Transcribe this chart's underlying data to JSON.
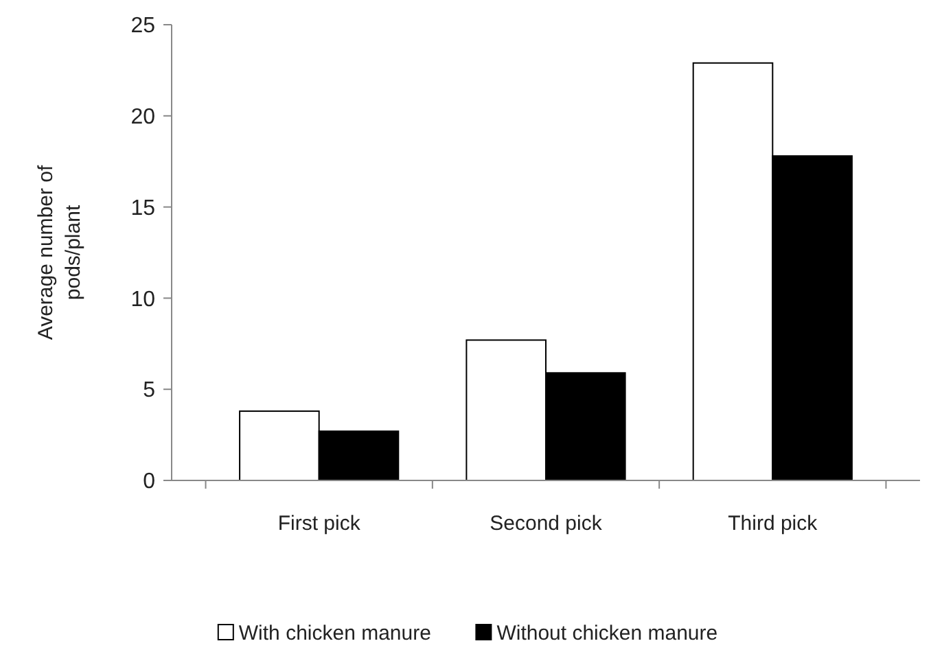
{
  "chart_data": {
    "type": "bar",
    "ylabel": "Average number of pods/plant",
    "categories": [
      "First pick",
      "Second pick",
      "Third pick"
    ],
    "series": [
      {
        "name": "With chicken manure",
        "color": "#ffffff",
        "values": [
          3.8,
          7.7,
          22.9
        ]
      },
      {
        "name": "Without chicken manure",
        "color": "#000000",
        "values": [
          2.7,
          5.9,
          17.8
        ]
      }
    ],
    "ylim": [
      0,
      25
    ],
    "yticks": [
      0,
      5,
      10,
      15,
      20,
      25
    ],
    "grid": false,
    "legend": "bottom"
  }
}
